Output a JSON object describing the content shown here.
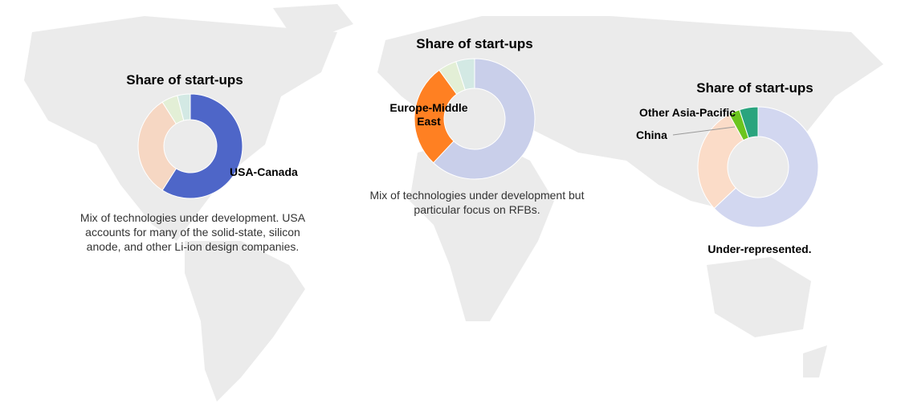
{
  "chart_data": [
    {
      "type": "pie",
      "title": "Share of start-ups",
      "categories": [
        "USA-Canada",
        null,
        null,
        null
      ],
      "values": [
        59,
        32,
        5,
        4
      ],
      "colors": [
        "#4e66c8",
        "#f6d7c3",
        "#e3efd6",
        "#d3e9e4"
      ],
      "note": "Mix of technologies under development. USA accounts for many of the solid-state, silicon anode, and other Li-ion design companies."
    },
    {
      "type": "pie",
      "title": "Share of start-ups",
      "categories": [
        null,
        "Europe-Middle East",
        null,
        null
      ],
      "values": [
        62,
        28,
        5,
        5
      ],
      "colors": [
        "#c9cfea",
        "#ff8022",
        "#e3efd6",
        "#d3e9e4"
      ],
      "note": "Mix of technologies under development but particular focus on RFBs."
    },
    {
      "type": "pie",
      "title": "Share of start-ups",
      "categories": [
        null,
        null,
        "China",
        "Other Asia-Pacific"
      ],
      "values": [
        63,
        29,
        3,
        5
      ],
      "colors": [
        "#d2d7f0",
        "#fbdcc8",
        "#6cc51e",
        "#2aa47e"
      ],
      "note": "Under-represented."
    }
  ]
}
